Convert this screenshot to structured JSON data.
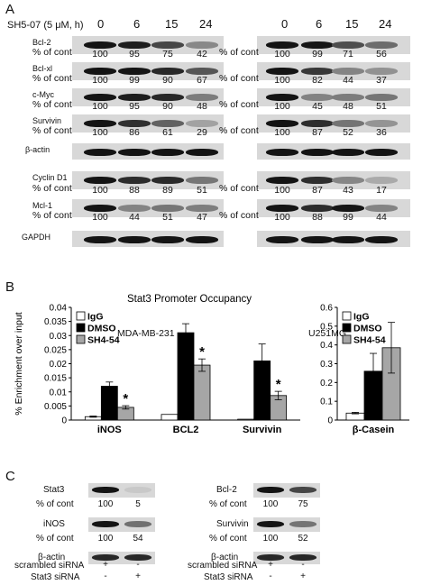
{
  "panel_a": {
    "letter": "A",
    "treatment_label": "SH5-07 (5 μM, h)",
    "timepoints": [
      "0",
      "6",
      "15",
      "24"
    ],
    "pct_label": "% of cont",
    "cell_lines": [
      "MDA-MB-231",
      "U251MG"
    ],
    "rows": [
      {
        "protein": "Bcl-2",
        "left": [
          "100",
          "95",
          "75",
          "42"
        ],
        "right": [
          "100",
          "99",
          "71",
          "56"
        ]
      },
      {
        "protein": "Bcl-xl",
        "left": [
          "100",
          "99",
          "90",
          "67"
        ],
        "right": [
          "100",
          "82",
          "44",
          "37"
        ]
      },
      {
        "protein": "c-Myc",
        "left": [
          "100",
          "95",
          "90",
          "48"
        ],
        "right": [
          "100",
          "45",
          "48",
          "51"
        ]
      },
      {
        "protein": "Survivin",
        "left": [
          "100",
          "86",
          "61",
          "29"
        ],
        "right": [
          "100",
          "87",
          "52",
          "36"
        ]
      },
      {
        "protein": "β-actin"
      },
      {
        "protein": "Cyclin D1",
        "left": [
          "100",
          "88",
          "89",
          "51"
        ],
        "right": [
          "100",
          "87",
          "43",
          "17"
        ]
      },
      {
        "protein": "Mcl-1",
        "left": [
          "100",
          "44",
          "51",
          "47"
        ],
        "right": [
          "100",
          "88",
          "99",
          "44"
        ]
      },
      {
        "protein": "GAPDH"
      }
    ]
  },
  "panel_b": {
    "letter": "B",
    "ylabel": "% Enrichment over input",
    "significance_mark": "*"
  },
  "chart_data": [
    {
      "type": "bar",
      "title": "Stat3 Promoter Occupancy",
      "categories": [
        "iNOS",
        "BCL2",
        "Survivin"
      ],
      "series": [
        {
          "name": "IgG",
          "values": [
            0.0012,
            0.002,
            0.0003
          ],
          "errors": [
            0.0002,
            0,
            0
          ],
          "color": "#ffffff"
        },
        {
          "name": "DMSO",
          "values": [
            0.012,
            0.031,
            0.021
          ],
          "errors": [
            0.0015,
            0.0032,
            0.006
          ],
          "color": "#000000"
        },
        {
          "name": "SH4-54",
          "values": [
            0.0045,
            0.0195,
            0.0087
          ],
          "errors": [
            0.0006,
            0.0022,
            0.0015
          ],
          "color": "#a6a6a6"
        }
      ],
      "significant": [
        false,
        false,
        true
      ],
      "ylim": [
        0,
        0.04
      ],
      "yticks": [
        "0",
        "0.005",
        "0.01",
        "0.015",
        "0.02",
        "0.025",
        "0.03",
        "0.035",
        "0.04"
      ],
      "ylabel": "% Enrichment over input",
      "legend": "top-left",
      "grid": false
    },
    {
      "type": "bar",
      "title": "",
      "categories": [
        "β-Casein"
      ],
      "series": [
        {
          "name": "IgG",
          "values": [
            0.037
          ],
          "errors": [
            0.004
          ],
          "color": "#ffffff"
        },
        {
          "name": "DMSO",
          "values": [
            0.26
          ],
          "errors": [
            0.095
          ],
          "color": "#000000"
        },
        {
          "name": "SH4-54",
          "values": [
            0.385
          ],
          "errors": [
            0.135
          ],
          "color": "#a6a6a6"
        }
      ],
      "ylim": [
        0,
        0.6
      ],
      "yticks": [
        "0",
        "0.1",
        "0.2",
        "0.3",
        "0.4",
        "0.5",
        "0.6"
      ],
      "legend": "top-left",
      "grid": false
    }
  ],
  "panel_c": {
    "letter": "C",
    "pct_label": "% of cont",
    "loading_label": "β-actin",
    "scrambled_label": "scrambled siRNA",
    "stat3_label": "Stat3 siRNA",
    "scrambled_signs": [
      "+",
      "-"
    ],
    "stat3_signs": [
      "-",
      "+"
    ],
    "left": [
      {
        "protein": "Stat3",
        "values": [
          "100",
          "5"
        ]
      },
      {
        "protein": "iNOS",
        "values": [
          "100",
          "54"
        ]
      }
    ],
    "right": [
      {
        "protein": "Bcl-2",
        "values": [
          "100",
          "75"
        ]
      },
      {
        "protein": "Survivin",
        "values": [
          "100",
          "52"
        ]
      }
    ]
  }
}
